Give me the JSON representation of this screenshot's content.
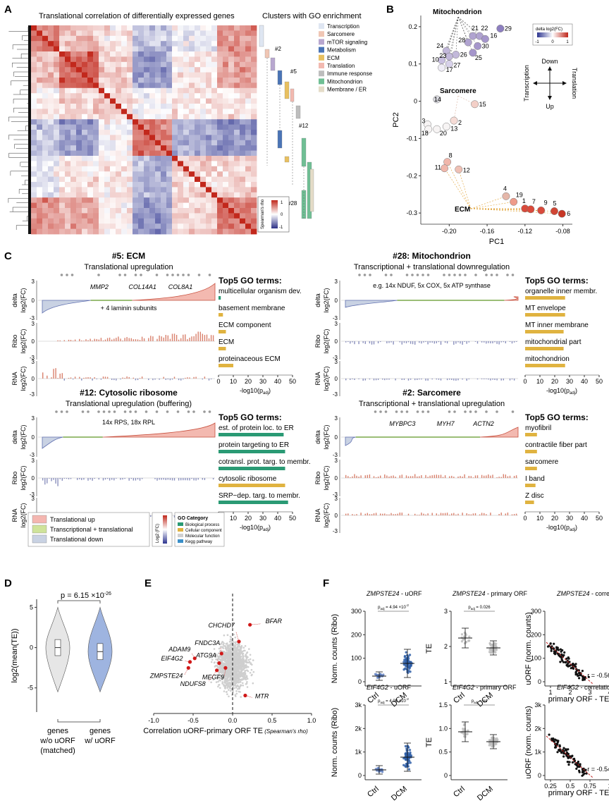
{
  "panels": {
    "a": "A",
    "b": "B",
    "c": "C",
    "d": "D",
    "e": "E",
    "f": "F"
  },
  "colors": {
    "up": "#d6604d",
    "down": "#5e6fae",
    "purple": "#9b8fc4",
    "mito": "#cbb5dd",
    "ecm_bar": "#e0b340",
    "green": "#2a9a74",
    "trans_up": "#f4b6b0",
    "tt": "#cfe39a",
    "trans_down": "#c9d2e3"
  },
  "panel_a": {
    "title": "Translational correlation of differentially expressed genes",
    "clusters_title": "Clusters with GO enrichment",
    "legend": [
      {
        "label": "Transcription",
        "color": "#dfe6f2"
      },
      {
        "label": "Sarcomere",
        "color": "#f0c6b4"
      },
      {
        "label": "mTOR signaling",
        "color": "#b8a7cf"
      },
      {
        "label": "Metabolism",
        "color": "#4a74b6"
      },
      {
        "label": "ECM",
        "color": "#e8c060"
      },
      {
        "label": "Translation",
        "color": "#f2b9b0"
      },
      {
        "label": "Immune response",
        "color": "#bdbdbd"
      },
      {
        "label": "Mitochondrion",
        "color": "#6fbf94"
      },
      {
        "label": "Membrane / ER",
        "color": "#e4dcc8"
      }
    ],
    "markers": [
      "#2",
      "#5",
      "#12",
      "#28"
    ],
    "scale_title": "Spearman's rho",
    "scale_ticks": [
      "1",
      "0",
      "-1"
    ]
  },
  "panel_b": {
    "xlabel": "PC1",
    "ylabel": "PC2",
    "x_ticks": [
      "-0.20",
      "-0.16",
      "-0.12",
      "-0.08"
    ],
    "y_ticks": [
      "0.2",
      "0.1",
      "0",
      "-0.1",
      "-0.2",
      "-0.3"
    ],
    "legend_title": "delta log2(FC)",
    "legend_ticks": [
      "-1",
      "0",
      "1"
    ],
    "compass": {
      "top": "Down",
      "bottom": "Up",
      "left": "Transcription",
      "right": "Translation"
    },
    "group_labels": [
      "Mitochondrion",
      "Sarcomere",
      "ECM"
    ],
    "chart_data": {
      "type": "scatter",
      "xlabel": "PC1",
      "ylabel": "PC2",
      "xlim": [
        -0.23,
        -0.07
      ],
      "ylim": [
        -0.33,
        0.23
      ],
      "points": [
        {
          "id": "29",
          "x": -0.146,
          "y": 0.195,
          "c": "#8d7fc0"
        },
        {
          "id": "21",
          "x": -0.175,
          "y": 0.175,
          "c": "#b0a3d0"
        },
        {
          "id": "22",
          "x": -0.168,
          "y": 0.175,
          "c": "#b0a3d0"
        },
        {
          "id": "16",
          "x": -0.162,
          "y": 0.167,
          "c": "#a596cb"
        },
        {
          "id": "28",
          "x": -0.18,
          "y": 0.158,
          "c": "#b0a3d0"
        },
        {
          "id": "30",
          "x": -0.17,
          "y": 0.148,
          "c": "#a596cb"
        },
        {
          "id": "25",
          "x": -0.175,
          "y": 0.13,
          "c": "#a596cb"
        },
        {
          "id": "24",
          "x": -0.203,
          "y": 0.135,
          "c": "#c2b8da"
        },
        {
          "id": "26",
          "x": -0.193,
          "y": 0.125,
          "c": "#c2b8da"
        },
        {
          "id": "23",
          "x": -0.2,
          "y": 0.12,
          "c": "#c2b8da"
        },
        {
          "id": "10",
          "x": -0.208,
          "y": 0.11,
          "c": "#c8bfe0"
        },
        {
          "id": "27",
          "x": -0.2,
          "y": 0.1,
          "c": "#d8d2ea"
        },
        {
          "id": "17",
          "x": -0.208,
          "y": 0.09,
          "c": "#efedf6"
        },
        {
          "id": "14",
          "x": -0.213,
          "y": 0.005,
          "c": "#d9d9df"
        },
        {
          "id": "15",
          "x": -0.173,
          "y": -0.008,
          "c": "#f3cfc7"
        },
        {
          "id": "2",
          "x": -0.195,
          "y": -0.052,
          "c": "#f6dcd6"
        },
        {
          "id": "3",
          "x": -0.223,
          "y": -0.062,
          "c": "#f7f4f4"
        },
        {
          "id": "13",
          "x": -0.203,
          "y": -0.068,
          "c": "#f7f4f4"
        },
        {
          "id": "18",
          "x": -0.222,
          "y": -0.075,
          "c": "#f7f4f4"
        },
        {
          "id": "20",
          "x": -0.213,
          "y": -0.075,
          "c": "#f7f4f4"
        },
        {
          "id": "8",
          "x": -0.202,
          "y": -0.163,
          "c": "#f0b7ab"
        },
        {
          "id": "11",
          "x": -0.205,
          "y": -0.18,
          "c": "#f0b7ab"
        },
        {
          "id": "12",
          "x": -0.19,
          "y": -0.183,
          "c": "#efc0b4"
        },
        {
          "id": "4",
          "x": -0.14,
          "y": -0.255,
          "c": "#e5b7a9"
        },
        {
          "id": "19",
          "x": -0.132,
          "y": -0.27,
          "c": "#ee9b8a"
        },
        {
          "id": "1",
          "x": -0.12,
          "y": -0.288,
          "c": "#d94a3b"
        },
        {
          "id": "7",
          "x": -0.114,
          "y": -0.29,
          "c": "#d94a3b"
        },
        {
          "id": "9",
          "x": -0.103,
          "y": -0.293,
          "c": "#d94a3b"
        },
        {
          "id": "5",
          "x": -0.089,
          "y": -0.295,
          "c": "#d14634"
        },
        {
          "id": "6",
          "x": -0.081,
          "y": -0.302,
          "c": "#c73726"
        }
      ]
    }
  },
  "panel_c": {
    "row_labels": {
      "delta": "delta",
      "log2": "log2(FC)",
      "ribo": "Ribo",
      "rna": "RNA"
    },
    "go_header": "Top5 GO terms:",
    "go_axis": "-log10(p",
    "go_axis_sub": "adj",
    "go_ticks": [
      "0",
      "10",
      "20",
      "30",
      "40",
      "50"
    ],
    "modules": [
      {
        "title": "#5: ECM",
        "subtitle": "Translational upregulation",
        "genes": [
          "MMP2",
          "COL14A1",
          "COL8A1"
        ],
        "note": "+ 4 laminin subunits",
        "go": [
          {
            "term": "multicellular organism dev.",
            "value": 1.5,
            "color": "#2a9a74"
          },
          {
            "term": "basement membrane",
            "value": 3,
            "color": "#e0b340"
          },
          {
            "term": "ECM component",
            "value": 5,
            "color": "#e0b340"
          },
          {
            "term": "ECM",
            "value": 5,
            "color": "#e0b340"
          },
          {
            "term": "proteinaceous ECM",
            "value": 10,
            "color": "#e0b340"
          }
        ]
      },
      {
        "title": "#28: Mitochondrion",
        "subtitle": "Transcriptional + translational downregulation",
        "genes": [],
        "note": "e.g. 14x NDUF, 5x COX, 5x ATP synthase",
        "go": [
          {
            "term": "organelle inner membr.",
            "value": 27,
            "color": "#e0b340"
          },
          {
            "term": "MT envelope",
            "value": 27,
            "color": "#e0b340"
          },
          {
            "term": "MT inner membrane",
            "value": 26,
            "color": "#e0b340"
          },
          {
            "term": "mitochondrial part",
            "value": 26,
            "color": "#e0b340"
          },
          {
            "term": "mitochondrion",
            "value": 27,
            "color": "#e0b340"
          }
        ]
      },
      {
        "title": "#12: Cytosolic ribosome",
        "subtitle": "Translational upregulation (buffering)",
        "genes": [],
        "note": "14x RPS, 18x RPL",
        "go": [
          {
            "term": "est. of protein loc. to ER",
            "value": 44,
            "color": "#2a9a74"
          },
          {
            "term": "protein targeting to ER",
            "value": 45,
            "color": "#2a9a74"
          },
          {
            "term": "cotransl. prot. targ. to membr.",
            "value": 45,
            "color": "#2a9a74"
          },
          {
            "term": "cytosolic ribosome",
            "value": 45,
            "color": "#e0b340"
          },
          {
            "term": "SRP−dep. targ. to membr.",
            "value": 47,
            "color": "#2a9a74"
          }
        ]
      },
      {
        "title": "#2: Sarcomere",
        "subtitle": "Transcriptional + translational upregulation",
        "genes": [
          "MYBPC3",
          "MYH7",
          "ACTN2"
        ],
        "note": "",
        "go": [
          {
            "term": "myofibril",
            "value": 8,
            "color": "#e0b340"
          },
          {
            "term": "contractile fiber part",
            "value": 8,
            "color": "#e0b340"
          },
          {
            "term": "sarcomere",
            "value": 8,
            "color": "#e0b340"
          },
          {
            "term": "I band",
            "value": 7,
            "color": "#e0b340"
          },
          {
            "term": "Z disc",
            "value": 6,
            "color": "#e0b340"
          }
        ]
      }
    ],
    "legend_boxes": [
      {
        "label": "Translational up",
        "color": "#f4b6b0"
      },
      {
        "label": "Transcriptional + translational",
        "color": "#cfe39a"
      },
      {
        "label": "Translational down",
        "color": "#c9d2e3"
      }
    ],
    "go_cat_title": "GO Category",
    "go_cats": [
      {
        "label": "Biological process",
        "color": "#2a9a74"
      },
      {
        "label": "Cellular component",
        "color": "#e0b340"
      },
      {
        "label": "Molecular function",
        "color": "#cfcfcf"
      },
      {
        "label": "Kegg pathway",
        "color": "#3a8fc8"
      }
    ],
    "fc_scale_label": "Log2 (FC)"
  },
  "panel_d": {
    "pvalue": "p = 6.15 ×10",
    "pexp": "-26",
    "ylabel": "log2(mean(TE))",
    "y_ticks": [
      "5",
      "0",
      "-5"
    ],
    "groups": [
      {
        "label": "genes w/o uORF (matched)"
      },
      {
        "label": "genes w/ uORF"
      }
    ],
    "labels_lines": [
      [
        "genes",
        "w/o uORF",
        "(matched)"
      ],
      [
        "genes",
        "w/ uORF"
      ]
    ],
    "chart_data": {
      "type": "violin",
      "categories": [
        "genes w/o uORF (matched)",
        "genes w/ uORF"
      ],
      "medians": [
        0.0,
        -0.5
      ],
      "ylim": [
        -8,
        6
      ]
    }
  },
  "panel_e": {
    "xlabel": "Correlation uORF-primary ORF TE",
    "xlabel_sub": "(Spearman's rho)",
    "x_ticks": [
      "-1.0",
      "-0.5",
      "0.0",
      "0.5",
      "1.0"
    ],
    "chart_data": {
      "type": "scatter",
      "xlim": [
        -1,
        1
      ],
      "labeled_points": [
        {
          "gene": "CHCHD7",
          "x": 0.08,
          "y": 0.6
        },
        {
          "gene": "BFAR",
          "x": 0.22,
          "y": 0.74
        },
        {
          "gene": "FNDC3A",
          "x": -0.14,
          "y": 0.5
        },
        {
          "gene": "ADAM9",
          "x": -0.48,
          "y": 0.46
        },
        {
          "gene": "ATG9A",
          "x": -0.17,
          "y": 0.42
        },
        {
          "gene": "EIF4G2",
          "x": -0.54,
          "y": 0.43
        },
        {
          "gene": "ZMPSTE24",
          "x": -0.56,
          "y": 0.38
        },
        {
          "gene": "MEGF9",
          "x": -0.09,
          "y": 0.38
        },
        {
          "gene": "NDUFS8",
          "x": -0.2,
          "y": 0.36
        },
        {
          "gene": "MTR",
          "x": 0.16,
          "y": 0.15
        }
      ]
    }
  },
  "panel_f": {
    "row1": [
      {
        "title_gene": "ZMPSTE24",
        "title_rest": " - uORF",
        "ylabel": "Norm. counts (Ribo)",
        "y_ticks": [
          "300",
          "200",
          "100",
          "0"
        ],
        "p": "p",
        "psub": "adj",
        "pval": " = 4.94 ×10",
        "pexp": "-2",
        "cats": [
          "Ctrl",
          "DCM"
        ]
      },
      {
        "title_gene": "ZMPSTE24",
        "title_rest": " - primary ORF",
        "ylabel": "TE",
        "y_ticks": [
          "3",
          "2",
          "1"
        ],
        "p": "p",
        "psub": "adj",
        "pval": " = 0.026",
        "pexp": "",
        "cats": [
          "Ctrl",
          "DCM"
        ]
      },
      {
        "title_gene": "ZMPSTE24",
        "title_rest": " - correlation",
        "ylabel": "uORF (norm. counts)",
        "xlabel": "primary ORF - TE",
        "x_ticks": [
          "1",
          "2",
          "3",
          "4"
        ],
        "y_ticks": [
          "300",
          "200",
          "100",
          "0"
        ],
        "r": "r = -0.56"
      }
    ],
    "row2": [
      {
        "title_gene": "EIF4G2",
        "title_rest": " - uORF",
        "ylabel": "Norm. counts (Ribo)",
        "y_ticks": [
          "3k",
          "2k",
          "1k",
          "0"
        ],
        "p": "p",
        "psub": "adj",
        "pval": " = 4.09 ×10",
        "pexp": "-2",
        "cats": [
          "Ctrl",
          "DCM"
        ]
      },
      {
        "title_gene": "EIF4G2",
        "title_rest": " - primary ORF",
        "ylabel": "TE",
        "y_ticks": [
          "1.5",
          "1.0",
          "0.5",
          "0"
        ],
        "p": "p",
        "psub": "adj",
        "pval": " = ns",
        "pexp": "",
        "cats": [
          "Ctrl",
          "DCM"
        ]
      },
      {
        "title_gene": "EIF4G2",
        "title_rest": " - correlation",
        "ylabel": "uORF (norm. counts)",
        "xlabel": "primary ORF - TE",
        "x_ticks": [
          "0.25",
          "0.5",
          "0.75",
          "1"
        ],
        "y_ticks": [
          "3k",
          "2k",
          "1k",
          "0"
        ],
        "r": "r = -0.54"
      }
    ]
  }
}
